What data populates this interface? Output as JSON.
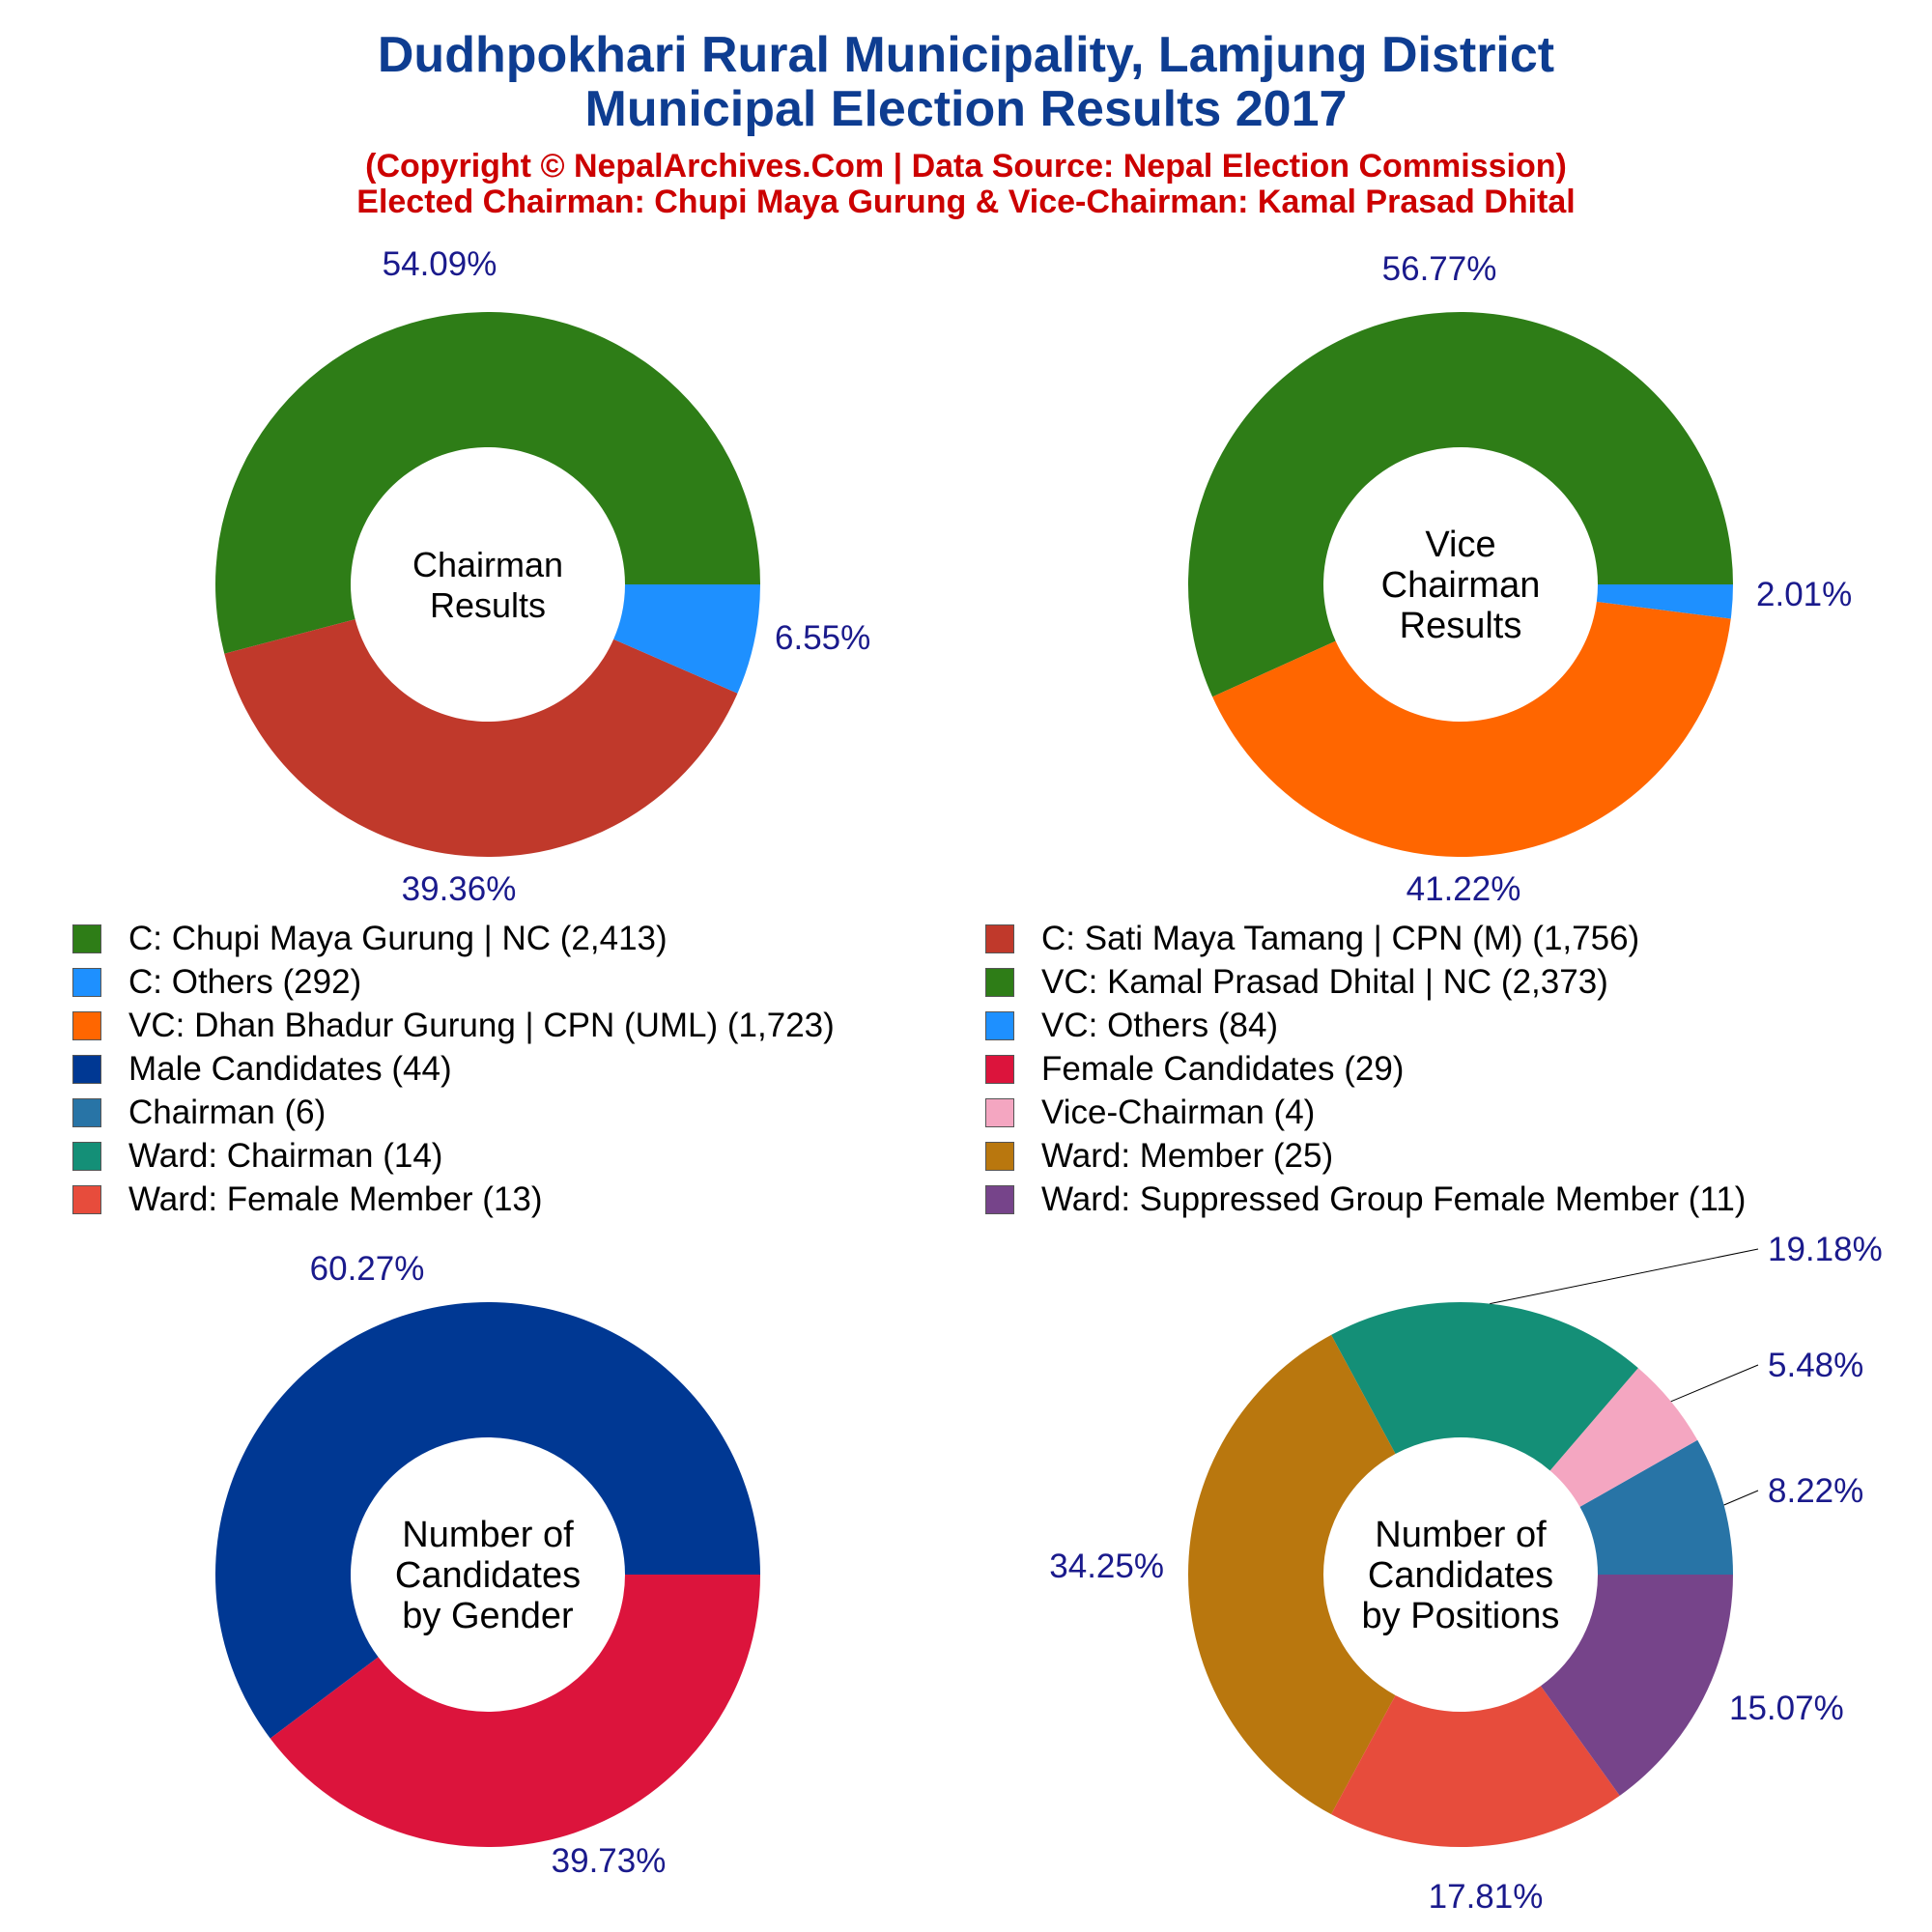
{
  "header": {
    "title_line1": "Dudhpokhari Rural Municipality, Lamjung District",
    "title_line2": "Municipal Election Results 2017",
    "subtitle_line1": "(Copyright © NepalArchives.Com | Data Source: Nepal Election Commission)",
    "subtitle_line2": "Elected Chairman: Chupi Maya Gurung & Vice-Chairman: Kamal Prasad Dhital"
  },
  "legend": {
    "items": [
      {
        "label": "C: Chupi Maya Gurung | NC (2,413)",
        "color": "#2e7d17"
      },
      {
        "label": "C: Sati Maya Tamang | CPN (M) (1,756)",
        "color": "#c0392b"
      },
      {
        "label": "C: Others (292)",
        "color": "#1e90ff"
      },
      {
        "label": "VC: Kamal Prasad Dhital | NC (2,373)",
        "color": "#2e7d17"
      },
      {
        "label": "VC: Dhan Bhadur Gurung | CPN (UML) (1,723)",
        "color": "#ff6600"
      },
      {
        "label": "VC: Others (84)",
        "color": "#1e90ff"
      },
      {
        "label": "Male Candidates (44)",
        "color": "#003893"
      },
      {
        "label": "Female Candidates (29)",
        "color": "#dc143c"
      },
      {
        "label": "Chairman (6)",
        "color": "#2874a6"
      },
      {
        "label": "Vice-Chairman (4)",
        "color": "#f4a6c1"
      },
      {
        "label": "Ward: Chairman (14)",
        "color": "#148f77"
      },
      {
        "label": "Ward: Member (25)",
        "color": "#b9770e"
      },
      {
        "label": "Ward: Female Member (13)",
        "color": "#e74c3c"
      },
      {
        "label": "Ward: Suppressed Group Female Member (11)",
        "color": "#76448a"
      }
    ]
  },
  "chart_data": [
    {
      "type": "pie",
      "variant": "donut",
      "center_label": [
        "Chairman",
        "Results"
      ],
      "slices": [
        {
          "name": "C: Chupi Maya Gurung | NC",
          "value": 2413,
          "percent_label": "54.09%",
          "color": "#2e7d17"
        },
        {
          "name": "C: Sati Maya Tamang | CPN (M)",
          "value": 1756,
          "percent_label": "39.36%",
          "color": "#c0392b"
        },
        {
          "name": "C: Others",
          "value": 292,
          "percent_label": "6.55%",
          "color": "#1e90ff"
        }
      ]
    },
    {
      "type": "pie",
      "variant": "donut",
      "center_label": [
        "Vice",
        "Chairman",
        "Results"
      ],
      "slices": [
        {
          "name": "VC: Kamal Prasad Dhital | NC",
          "value": 2373,
          "percent_label": "56.77%",
          "color": "#2e7d17"
        },
        {
          "name": "VC: Dhan Bhadur Gurung | CPN (UML)",
          "value": 1723,
          "percent_label": "41.22%",
          "color": "#ff6600"
        },
        {
          "name": "VC: Others",
          "value": 84,
          "percent_label": "2.01%",
          "color": "#1e90ff"
        }
      ]
    },
    {
      "type": "pie",
      "variant": "donut",
      "center_label": [
        "Number of",
        "Candidates",
        "by Gender"
      ],
      "slices": [
        {
          "name": "Male Candidates",
          "value": 44,
          "percent_label": "60.27%",
          "color": "#003893"
        },
        {
          "name": "Female Candidates",
          "value": 29,
          "percent_label": "39.73%",
          "color": "#dc143c"
        }
      ]
    },
    {
      "type": "pie",
      "variant": "donut",
      "center_label": [
        "Number of",
        "Candidates",
        "by Positions"
      ],
      "slices": [
        {
          "name": "Chairman",
          "value": 6,
          "percent_label": "8.22%",
          "color": "#2874a6"
        },
        {
          "name": "Vice-Chairman",
          "value": 4,
          "percent_label": "5.48%",
          "color": "#f4a6c1"
        },
        {
          "name": "Ward: Chairman",
          "value": 14,
          "percent_label": "19.18%",
          "color": "#148f77"
        },
        {
          "name": "Ward: Member",
          "value": 25,
          "percent_label": "34.25%",
          "color": "#b9770e"
        },
        {
          "name": "Ward: Female Member",
          "value": 13,
          "percent_label": "17.81%",
          "color": "#e74c3c"
        },
        {
          "name": "Ward: Suppressed Group Female Member",
          "value": 11,
          "percent_label": "15.07%",
          "color": "#76448a"
        }
      ]
    }
  ]
}
